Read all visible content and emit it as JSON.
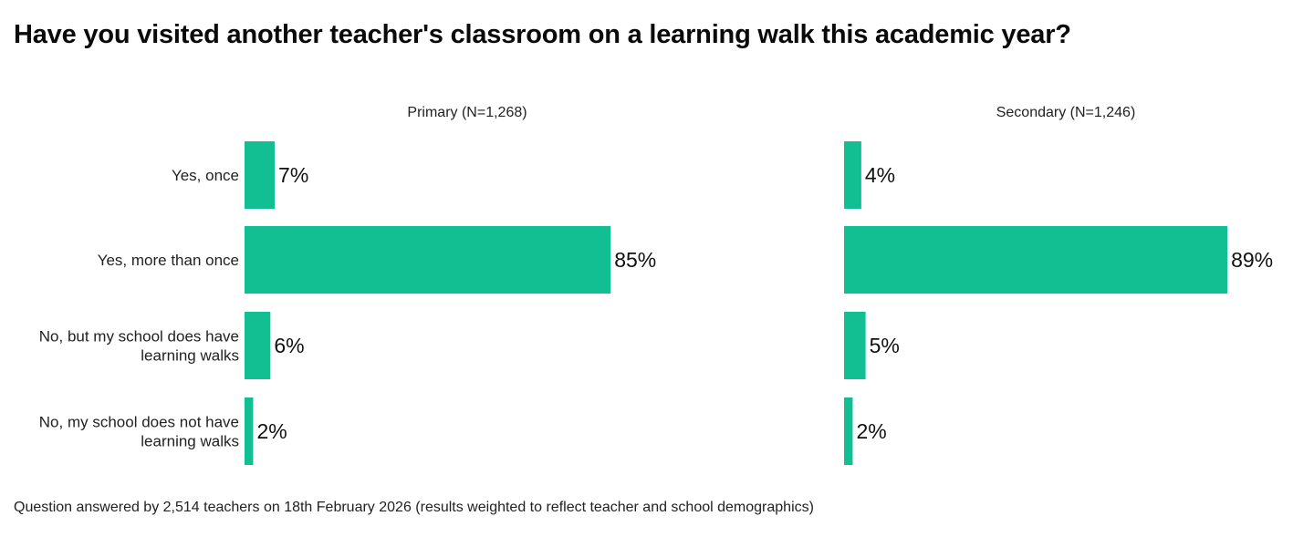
{
  "title": "Have you visited another teacher's classroom on a learning walk this academic year?",
  "footnote": "Question answered by 2,514 teachers on 18th February 2026 (results weighted to reflect teacher and school demographics)",
  "colors": {
    "bar": "#12BF93",
    "text": "#222222"
  },
  "chart_data": {
    "type": "bar",
    "orientation": "horizontal",
    "title": "Have you visited another teacher's classroom on a learning walk this academic year?",
    "categories": [
      "Yes, once",
      "Yes, more than once",
      "No, but my school does have learning walks",
      "No, my school does not have learning walks"
    ],
    "category_lines": [
      [
        "Yes, once"
      ],
      [
        "Yes, more than once"
      ],
      [
        "No, but my school does have",
        "learning walks"
      ],
      [
        "No, my school does not have",
        "learning walks"
      ]
    ],
    "xlim": [
      0,
      100
    ],
    "grid": false,
    "unit": "%",
    "panels": [
      {
        "name": "Primary (N=1,268)",
        "values": [
          7,
          85,
          6,
          2
        ],
        "value_labels": [
          "7%",
          "85%",
          "6%",
          "2%"
        ]
      },
      {
        "name": "Secondary (N=1,246)",
        "values": [
          4,
          89,
          5,
          2
        ],
        "value_labels": [
          "4%",
          "89%",
          "5%",
          "2%"
        ]
      }
    ]
  }
}
